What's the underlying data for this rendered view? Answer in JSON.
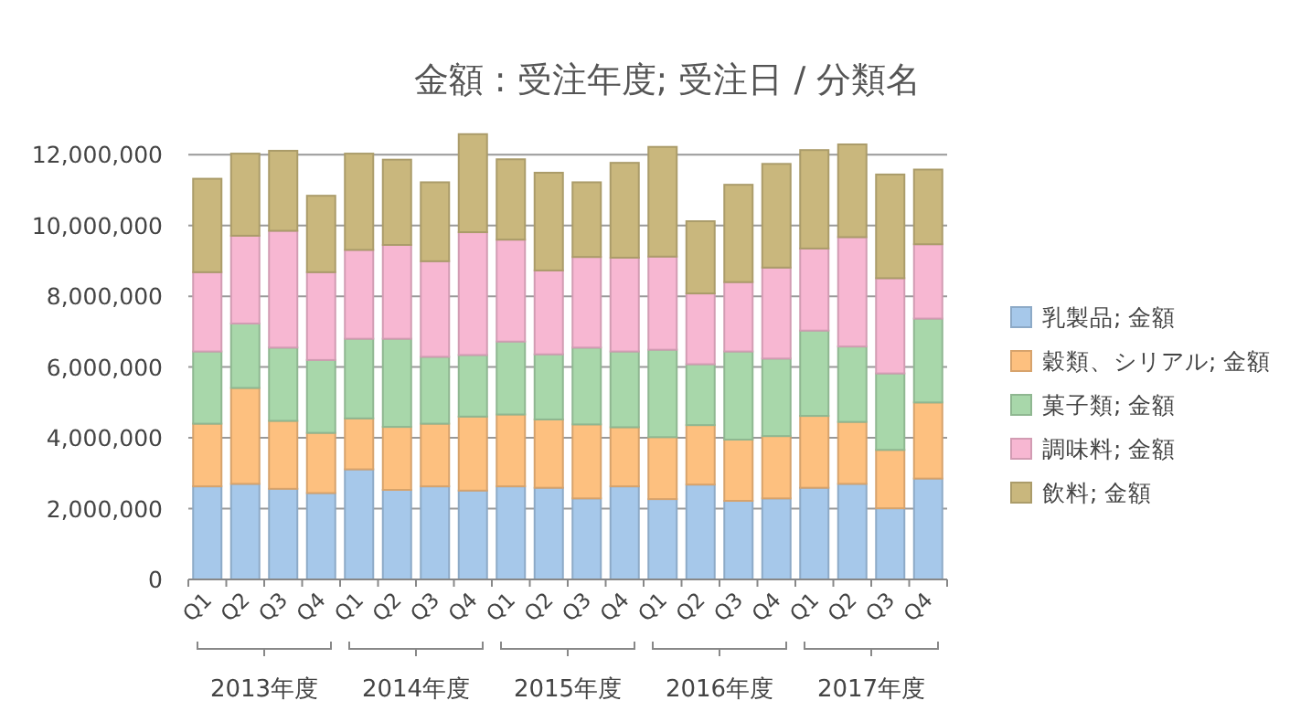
{
  "chart_data": {
    "type": "bar",
    "stacked": true,
    "title": "金額 : 受注年度; 受注日 / 分類名",
    "categories": [
      "Q1",
      "Q2",
      "Q3",
      "Q4",
      "Q1",
      "Q2",
      "Q3",
      "Q4",
      "Q1",
      "Q2",
      "Q3",
      "Q4",
      "Q1",
      "Q2",
      "Q3",
      "Q4",
      "Q1",
      "Q2",
      "Q3",
      "Q4"
    ],
    "annotations": [
      "2013年度",
      "2014年度",
      "2015年度",
      "2016年度",
      "2017年度"
    ],
    "series": [
      {
        "name": "乳製品; 金額",
        "color": "#a6c8ea",
        "values": [
          2630000,
          2700000,
          2560000,
          2440000,
          3110000,
          2530000,
          2630000,
          2510000,
          2630000,
          2590000,
          2290000,
          2630000,
          2270000,
          2680000,
          2220000,
          2290000,
          2590000,
          2700000,
          2010000,
          2850000
        ]
      },
      {
        "name": "穀類、シリアル; 金額",
        "color": "#fdc07f",
        "values": [
          1770000,
          2710000,
          1920000,
          1700000,
          1440000,
          1780000,
          1770000,
          2090000,
          2030000,
          1930000,
          2090000,
          1670000,
          1750000,
          1680000,
          1730000,
          1760000,
          2030000,
          1750000,
          1650000,
          2150000
        ]
      },
      {
        "name": "菓子類; 金額",
        "color": "#a8d7aa",
        "values": [
          2040000,
          1820000,
          2070000,
          2060000,
          2250000,
          2490000,
          1890000,
          1740000,
          2060000,
          1840000,
          2170000,
          2140000,
          2470000,
          1720000,
          2490000,
          2190000,
          2410000,
          2130000,
          2160000,
          2370000
        ]
      },
      {
        "name": "調味料; 金額",
        "color": "#f7b7d2",
        "values": [
          2240000,
          2480000,
          3300000,
          2480000,
          2510000,
          2650000,
          2700000,
          3470000,
          2880000,
          2370000,
          2560000,
          2650000,
          2630000,
          2000000,
          1960000,
          2570000,
          2320000,
          3090000,
          2690000,
          2100000
        ]
      },
      {
        "name": "飲料; 金額",
        "color": "#c9b77d",
        "values": [
          2640000,
          2320000,
          2260000,
          2160000,
          2720000,
          2410000,
          2230000,
          2770000,
          2270000,
          2760000,
          2110000,
          2680000,
          3100000,
          2040000,
          2750000,
          2930000,
          2780000,
          2620000,
          2930000,
          2110000
        ]
      }
    ],
    "ylim": [
      0,
      12600000
    ],
    "yticks": [
      {
        "value": 0,
        "label": "0"
      },
      {
        "value": 2000000,
        "label": "2,000,000"
      },
      {
        "value": 4000000,
        "label": "4,000,000"
      },
      {
        "value": 6000000,
        "label": "6,000,000"
      },
      {
        "value": 8000000,
        "label": "8,000,000"
      },
      {
        "value": 10000000,
        "label": "10,000,000"
      },
      {
        "value": 12000000,
        "label": "12,000,000"
      }
    ],
    "grid": "y",
    "legend": "right"
  }
}
